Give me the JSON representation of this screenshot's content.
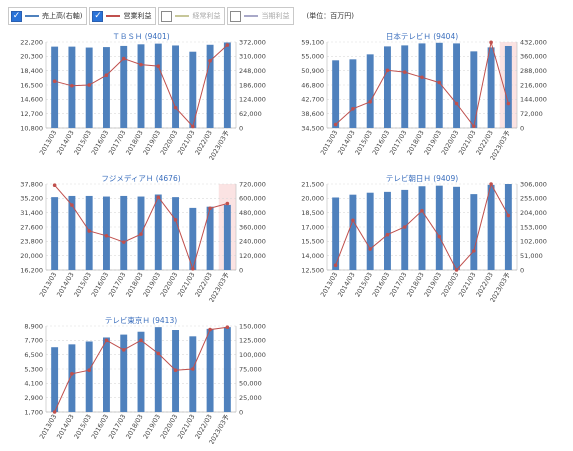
{
  "legend": {
    "items": [
      {
        "label": "売上高(右軸)",
        "checked": true,
        "color": "#4f81bd"
      },
      {
        "label": "営業利益",
        "checked": true,
        "color": "#c0504d"
      },
      {
        "label": "経常利益",
        "checked": false,
        "color": "#c7c79a"
      },
      {
        "label": "当期利益",
        "checked": false,
        "color": "#a8a8c8"
      }
    ],
    "unit": "(単位：百万円)"
  },
  "chart_data": [
    {
      "type": "bar+line",
      "title": "ＴＢＳＨ (9401)",
      "categories": [
        "2013/03",
        "2014/03",
        "2015/03",
        "2016/03",
        "2017/03",
        "2018/03",
        "2019/03",
        "2020/03",
        "2021/03",
        "2022/03",
        "2023/03予"
      ],
      "y_left_ticks": [
        "10,800",
        "12,700",
        "14,600",
        "16,500",
        "18,400",
        "20,300",
        "22,200"
      ],
      "y_left_range": [
        10800,
        22200
      ],
      "y_right_ticks": [
        "0",
        "62,000",
        "124,000",
        "186,000",
        "248,000",
        "310,000",
        "372,000"
      ],
      "y_right_range": [
        0,
        372000
      ],
      "highlight_last": false,
      "series": [
        {
          "name": "売上高(右軸)",
          "type": "bar",
          "axis": "right",
          "values": [
            352000,
            352000,
            348000,
            350000,
            355000,
            362000,
            365000,
            357000,
            330000,
            360000,
            370000
          ]
        },
        {
          "name": "営業利益",
          "type": "line",
          "axis": "left",
          "values": [
            17000,
            16400,
            16500,
            17800,
            20000,
            19200,
            19000,
            13500,
            11000,
            19700,
            21800
          ]
        }
      ]
    },
    {
      "type": "bar+line",
      "title": "日本テレビＨ (9404)",
      "categories": [
        "2013/03",
        "2014/03",
        "2015/03",
        "2016/03",
        "2017/03",
        "2018/03",
        "2019/03",
        "2020/03",
        "2021/03",
        "2022/03",
        "2023/03予"
      ],
      "y_left_ticks": [
        "34,500",
        "38,600",
        "42,700",
        "46,800",
        "50,900",
        "55,000",
        "59,100"
      ],
      "y_left_range": [
        34500,
        59100
      ],
      "y_right_ticks": [
        "0",
        "72,000",
        "144,000",
        "216,000",
        "288,000",
        "360,000",
        "432,000"
      ],
      "y_right_range": [
        0,
        432000
      ],
      "highlight_last": true,
      "series": [
        {
          "name": "売上高(右軸)",
          "type": "bar",
          "axis": "right",
          "values": [
            340000,
            345000,
            370000,
            410000,
            415000,
            425000,
            428000,
            425000,
            385000,
            405000,
            412000
          ]
        },
        {
          "name": "営業利益",
          "type": "line",
          "axis": "left",
          "values": [
            35500,
            40000,
            42000,
            51000,
            50500,
            49000,
            47500,
            41500,
            35000,
            59000,
            41500
          ]
        }
      ]
    },
    {
      "type": "bar+line",
      "title": "フジメディアＨ (4676)",
      "categories": [
        "2013/03",
        "2014/03",
        "2015/03",
        "2016/03",
        "2017/03",
        "2018/03",
        "2019/03",
        "2020/03",
        "2021/03",
        "2022/03",
        "2023/03予"
      ],
      "y_left_ticks": [
        "16,200",
        "20,000",
        "23,800",
        "27,600",
        "31,400",
        "35,200",
        "37,800"
      ],
      "y_left_range": [
        16200,
        37800
      ],
      "y_right_ticks": [
        "0",
        "120,000",
        "240,000",
        "360,000",
        "480,000",
        "600,000",
        "720,000"
      ],
      "y_right_range": [
        0,
        720000
      ],
      "highlight_last": true,
      "series": [
        {
          "name": "売上高(右軸)",
          "type": "bar",
          "axis": "right",
          "values": [
            610000,
            620000,
            620000,
            615000,
            620000,
            615000,
            632000,
            610000,
            520000,
            530000,
            545000
          ]
        },
        {
          "name": "営業利益",
          "type": "line",
          "axis": "left",
          "values": [
            37500,
            32500,
            26000,
            24800,
            23200,
            25200,
            34500,
            28800,
            16500,
            31700,
            32900
          ]
        }
      ]
    },
    {
      "type": "bar+line",
      "title": "テレビ朝日Ｈ (9409)",
      "categories": [
        "2013/03",
        "2014/03",
        "2015/03",
        "2016/03",
        "2017/03",
        "2018/03",
        "2019/03",
        "2020/03",
        "2021/03",
        "2022/03",
        "2023/03予"
      ],
      "y_left_ticks": [
        "12,500",
        "14,000",
        "15,500",
        "17,000",
        "18,500",
        "20,000",
        "21,500"
      ],
      "y_left_range": [
        12500,
        21500
      ],
      "y_right_ticks": [
        "0",
        "51,000",
        "102,000",
        "153,000",
        "204,000",
        "255,000",
        "306,000"
      ],
      "y_right_range": [
        0,
        306000
      ],
      "highlight_last": false,
      "series": [
        {
          "name": "売上高(右軸)",
          "type": "bar",
          "axis": "right",
          "values": [
            258000,
            268000,
            275000,
            278000,
            285000,
            298000,
            300000,
            296000,
            270000,
            303000,
            306000
          ]
        },
        {
          "name": "営業利益",
          "type": "line",
          "axis": "left",
          "values": [
            13000,
            17700,
            14700,
            16200,
            17000,
            18700,
            16000,
            12500,
            14500,
            21500,
            18200
          ]
        }
      ]
    },
    {
      "type": "bar+line",
      "title": "テレビ東京Ｈ (9413)",
      "categories": [
        "2013/03",
        "2014/03",
        "2015/03",
        "2016/03",
        "2017/03",
        "2018/03",
        "2019/03",
        "2020/03",
        "2021/03",
        "2022/03",
        "2023/03予"
      ],
      "y_left_ticks": [
        "1,700",
        "2,900",
        "4,100",
        "5,300",
        "6,500",
        "7,700",
        "8,900"
      ],
      "y_left_range": [
        1700,
        8900
      ],
      "y_right_ticks": [
        "0",
        "25,000",
        "50,000",
        "75,000",
        "100,000",
        "125,000",
        "150,000"
      ],
      "y_right_range": [
        0,
        150000
      ],
      "highlight_last": false,
      "series": [
        {
          "name": "売上高(右軸)",
          "type": "bar",
          "axis": "right",
          "values": [
            113000,
            118000,
            123000,
            130000,
            135000,
            140000,
            148000,
            143000,
            132000,
            145000,
            148000
          ]
        },
        {
          "name": "営業利益",
          "type": "line",
          "axis": "left",
          "values": [
            1700,
            4900,
            5200,
            7700,
            6900,
            7700,
            6600,
            5200,
            5300,
            8600,
            8800
          ]
        }
      ]
    }
  ]
}
